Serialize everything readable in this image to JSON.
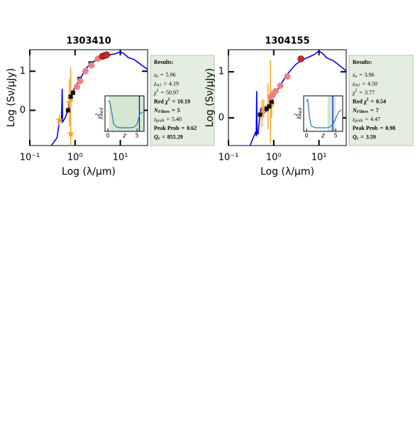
{
  "chart_data": [
    {
      "type": "line",
      "title": "1303410",
      "xlabel": "Log (λ/μm)",
      "ylabel": "Log (Sν/μJy)",
      "xlog": true,
      "xlim": [
        0.1,
        40
      ],
      "ylim": [
        -0.9,
        1.55
      ],
      "xticks": [
        {
          "value": 0.1,
          "label": "10⁻¹"
        },
        {
          "value": 1,
          "label": "10⁰"
        },
        {
          "value": 10,
          "label": "10¹"
        }
      ],
      "yticks": [
        0,
        1
      ],
      "series": [
        {
          "color": "#0000ee",
          "marker": "line",
          "x": [
            0.3,
            0.4,
            0.45,
            0.5,
            0.52,
            0.53,
            0.6,
            0.7,
            0.8,
            1.0,
            1.3,
            1.6,
            2,
            3,
            4,
            6,
            8,
            10,
            12,
            15,
            20,
            25,
            30,
            40
          ],
          "values": [
            -0.9,
            -0.7,
            -0.3,
            -0.25,
            0.55,
            -0.3,
            -0.2,
            0.0,
            0.35,
            0.6,
            0.8,
            1.0,
            1.15,
            1.3,
            1.38,
            1.42,
            1.45,
            1.5,
            1.45,
            1.35,
            1.3,
            1.22,
            1.15,
            1.05
          ]
        },
        {
          "color": "#f5a623",
          "marker": "star",
          "x": [
            0.45,
            0.75,
            0.8,
            0.8
          ],
          "values": [
            -0.25,
            0.2,
            0.3,
            -0.6
          ],
          "errors": [
            0.15,
            0.6,
            0.8,
            0.4
          ]
        },
        {
          "color": "#111111",
          "marker": "square",
          "x": [
            0.7,
            0.8,
            0.9,
            1.25,
            2.2
          ],
          "values": [
            0.0,
            0.35,
            0.45,
            0.8,
            1.2
          ]
        },
        {
          "color": "#f08080",
          "marker": "circle",
          "x": [
            1.1,
            1.3,
            1.7,
            2.3,
            3.2
          ],
          "values": [
            0.6,
            0.75,
            1.0,
            1.15,
            1.32
          ]
        },
        {
          "color": "#d62728",
          "marker": "circle",
          "x": [
            4,
            4.5,
            5
          ],
          "values": [
            1.38,
            1.4,
            1.42
          ]
        }
      ],
      "inset": {
        "xlabel": "z",
        "ylabel": "χ",
        "ylabel_sup": "2",
        "ylabel_sub": "Red",
        "xlim": [
          -0.5,
          6.2
        ],
        "ylim": [
          0,
          1
        ],
        "xticks": [
          0,
          5
        ],
        "x": [
          0,
          0.3,
          0.6,
          1,
          1.5,
          2,
          3,
          4,
          4.5,
          5,
          5.5,
          6
        ],
        "values": [
          0.85,
          0.85,
          0.6,
          0.2,
          0.12,
          0.1,
          0.1,
          0.1,
          0.12,
          0.2,
          0.5,
          0.55
        ],
        "color": "#1f77b4",
        "shade": [
          0.2,
          6.2
        ],
        "line_z": 5.4
      },
      "results": {
        "title": "Results:",
        "equals": "=",
        "rows": [
          {
            "name": "z",
            "sub": "a",
            "value": "5.96"
          },
          {
            "name": "z",
            "sub": "m1",
            "value": "4.19"
          },
          {
            "name": "χ",
            "sup": "2",
            "value": "50.97"
          },
          {
            "name": "Red χ",
            "sup": "2",
            "value": "10.19",
            "bold": true
          },
          {
            "name": "N",
            "sub": "Filters",
            "value": "5",
            "bold": true
          },
          {
            "name": "z",
            "sub": "peak",
            "value": "5.40"
          },
          {
            "name": "Peak Prob",
            "value": "0.62",
            "bold": true
          },
          {
            "name": "Q",
            "sub": "z",
            "value": "855.29",
            "bold": true
          }
        ]
      }
    },
    {
      "type": "line",
      "title": "1304155",
      "xlabel": "Log (λ/μm)",
      "ylabel": "Log (Sν/μJy)",
      "xlog": true,
      "xlim": [
        0.1,
        40
      ],
      "ylim": [
        -0.6,
        1.48
      ],
      "xticks": [
        {
          "value": 0.1,
          "label": "10⁻¹"
        },
        {
          "value": 1,
          "label": "10⁰"
        },
        {
          "value": 10,
          "label": "10¹"
        }
      ],
      "yticks": [
        0,
        1
      ],
      "series": [
        {
          "color": "#0000ee",
          "marker": "line",
          "x": [
            0.3,
            0.4,
            0.41,
            0.42,
            0.43,
            0.45,
            0.5,
            0.52,
            0.6,
            0.7,
            0.8,
            0.9,
            1.0,
            1.2,
            1.6,
            2,
            3,
            4,
            6,
            8,
            10,
            12,
            15,
            20,
            25,
            30,
            40
          ],
          "values": [
            -0.6,
            -0.3,
            -0.4,
            0.58,
            -0.35,
            -0.35,
            0.1,
            0.2,
            0.1,
            0.15,
            0.3,
            0.4,
            0.5,
            0.6,
            0.8,
            0.95,
            1.15,
            1.25,
            1.32,
            1.38,
            1.45,
            1.4,
            1.3,
            1.25,
            1.18,
            1.12,
            1.02
          ]
        },
        {
          "color": "#f5a623",
          "marker": "star",
          "x": [
            0.55,
            0.6,
            0.75,
            0.85,
            0.9
          ],
          "values": [
            0.1,
            0.2,
            0.25,
            0.35,
            0.3
          ],
          "errors": [
            0.3,
            0.2,
            0.5,
            0.9,
            0.3
          ]
        },
        {
          "color": "#111111",
          "marker": "square",
          "x": [
            0.5,
            0.7,
            0.8,
            0.9
          ],
          "values": [
            0.07,
            0.2,
            0.25,
            0.35
          ]
        },
        {
          "color": "#f08080",
          "marker": "circle",
          "x": [
            0.85,
            0.95,
            1.1,
            1.4,
            2
          ],
          "values": [
            0.45,
            0.5,
            0.58,
            0.7,
            0.9
          ]
        },
        {
          "color": "#d62728",
          "marker": "circle",
          "x": [
            4
          ],
          "values": [
            1.28
          ]
        }
      ],
      "inset": {
        "xlabel": "z",
        "ylabel": "χ",
        "ylabel_sup": "2",
        "ylabel_sub": "Red",
        "xlim": [
          -0.5,
          6.2
        ],
        "ylim": [
          0,
          1
        ],
        "xticks": [
          0,
          5
        ],
        "x": [
          0,
          0.2,
          0.5,
          0.8,
          1.5,
          2.5,
          3.5,
          4,
          4.5,
          5,
          5.5,
          6
        ],
        "values": [
          0.85,
          0.9,
          0.4,
          0.15,
          0.1,
          0.1,
          0.1,
          0.12,
          0.2,
          0.35,
          0.55,
          0.6
        ],
        "color": "#1f77b4",
        "shade": [
          3.6,
          5.0
        ],
        "line_z": 4.5
      },
      "results": {
        "title": "Results:",
        "equals": "=",
        "rows": [
          {
            "name": "z",
            "sub": "a",
            "value": "3.96"
          },
          {
            "name": "z",
            "sub": "m1",
            "value": "4.50"
          },
          {
            "name": "χ",
            "sup": "2",
            "value": "3.77"
          },
          {
            "name": "Red χ",
            "sup": "2",
            "value": "0.54",
            "bold": true
          },
          {
            "name": "N",
            "sub": "Filters",
            "value": "7",
            "bold": true
          },
          {
            "name": "z",
            "sub": "peak",
            "value": "4.47"
          },
          {
            "name": "Peak Prob",
            "value": "0.98",
            "bold": true
          },
          {
            "name": "Q",
            "sub": "z",
            "value": "3.59",
            "bold": true
          }
        ]
      }
    }
  ]
}
